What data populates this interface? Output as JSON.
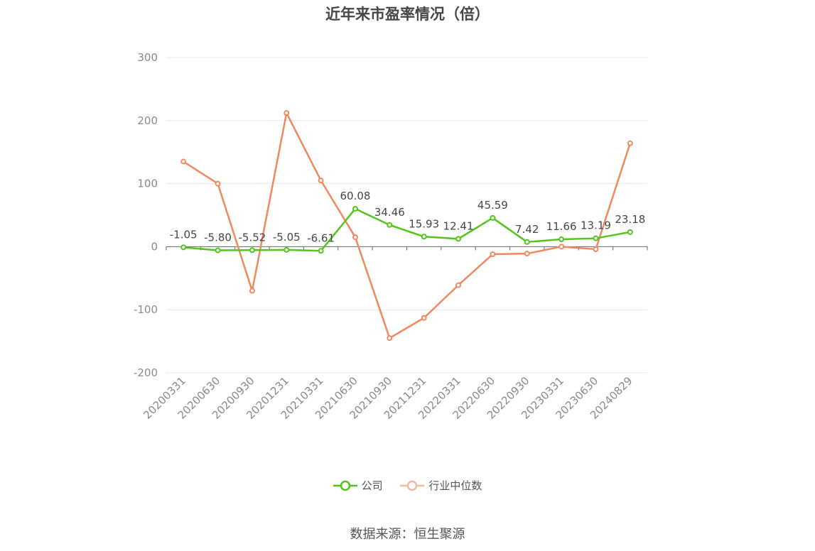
{
  "title": "近年来市盈率情况（倍）",
  "source": "数据来源：恒生聚源",
  "colors": {
    "company": "#52c41a",
    "industry": "#f0895f",
    "grid": "#e6e8ef",
    "axis": "#666666"
  },
  "chart_data": {
    "type": "line",
    "title": "近年来市盈率情况（倍）",
    "categories": [
      "20200331",
      "20200630",
      "20200930",
      "20201231",
      "20210331",
      "20210630",
      "20210930",
      "20211231",
      "20220331",
      "20220630",
      "20220930",
      "20230331",
      "20230630",
      "20240829"
    ],
    "ylim": [
      -200,
      300
    ],
    "yticks": [
      300,
      200,
      100,
      0,
      -100,
      -200
    ],
    "grid": true,
    "legend_position": "bottom",
    "series": [
      {
        "name": "公司",
        "values": [
          -1.05,
          -5.8,
          -5.52,
          -5.05,
          -6.61,
          60.08,
          34.46,
          15.93,
          12.41,
          45.59,
          7.42,
          11.66,
          13.19,
          23.18
        ],
        "labels": [
          "-1.05",
          "-5.80",
          "-5.52",
          "-5.05",
          "-6.61",
          "60.08",
          "34.46",
          "15.93",
          "12.41",
          "45.59",
          "7.42",
          "11.66",
          "13.19",
          "23.18"
        ]
      },
      {
        "name": "行业中位数",
        "values": [
          135,
          100,
          -70,
          212,
          105,
          15,
          -145,
          -113,
          -61,
          -12,
          -11,
          0,
          -4,
          164
        ]
      }
    ]
  }
}
